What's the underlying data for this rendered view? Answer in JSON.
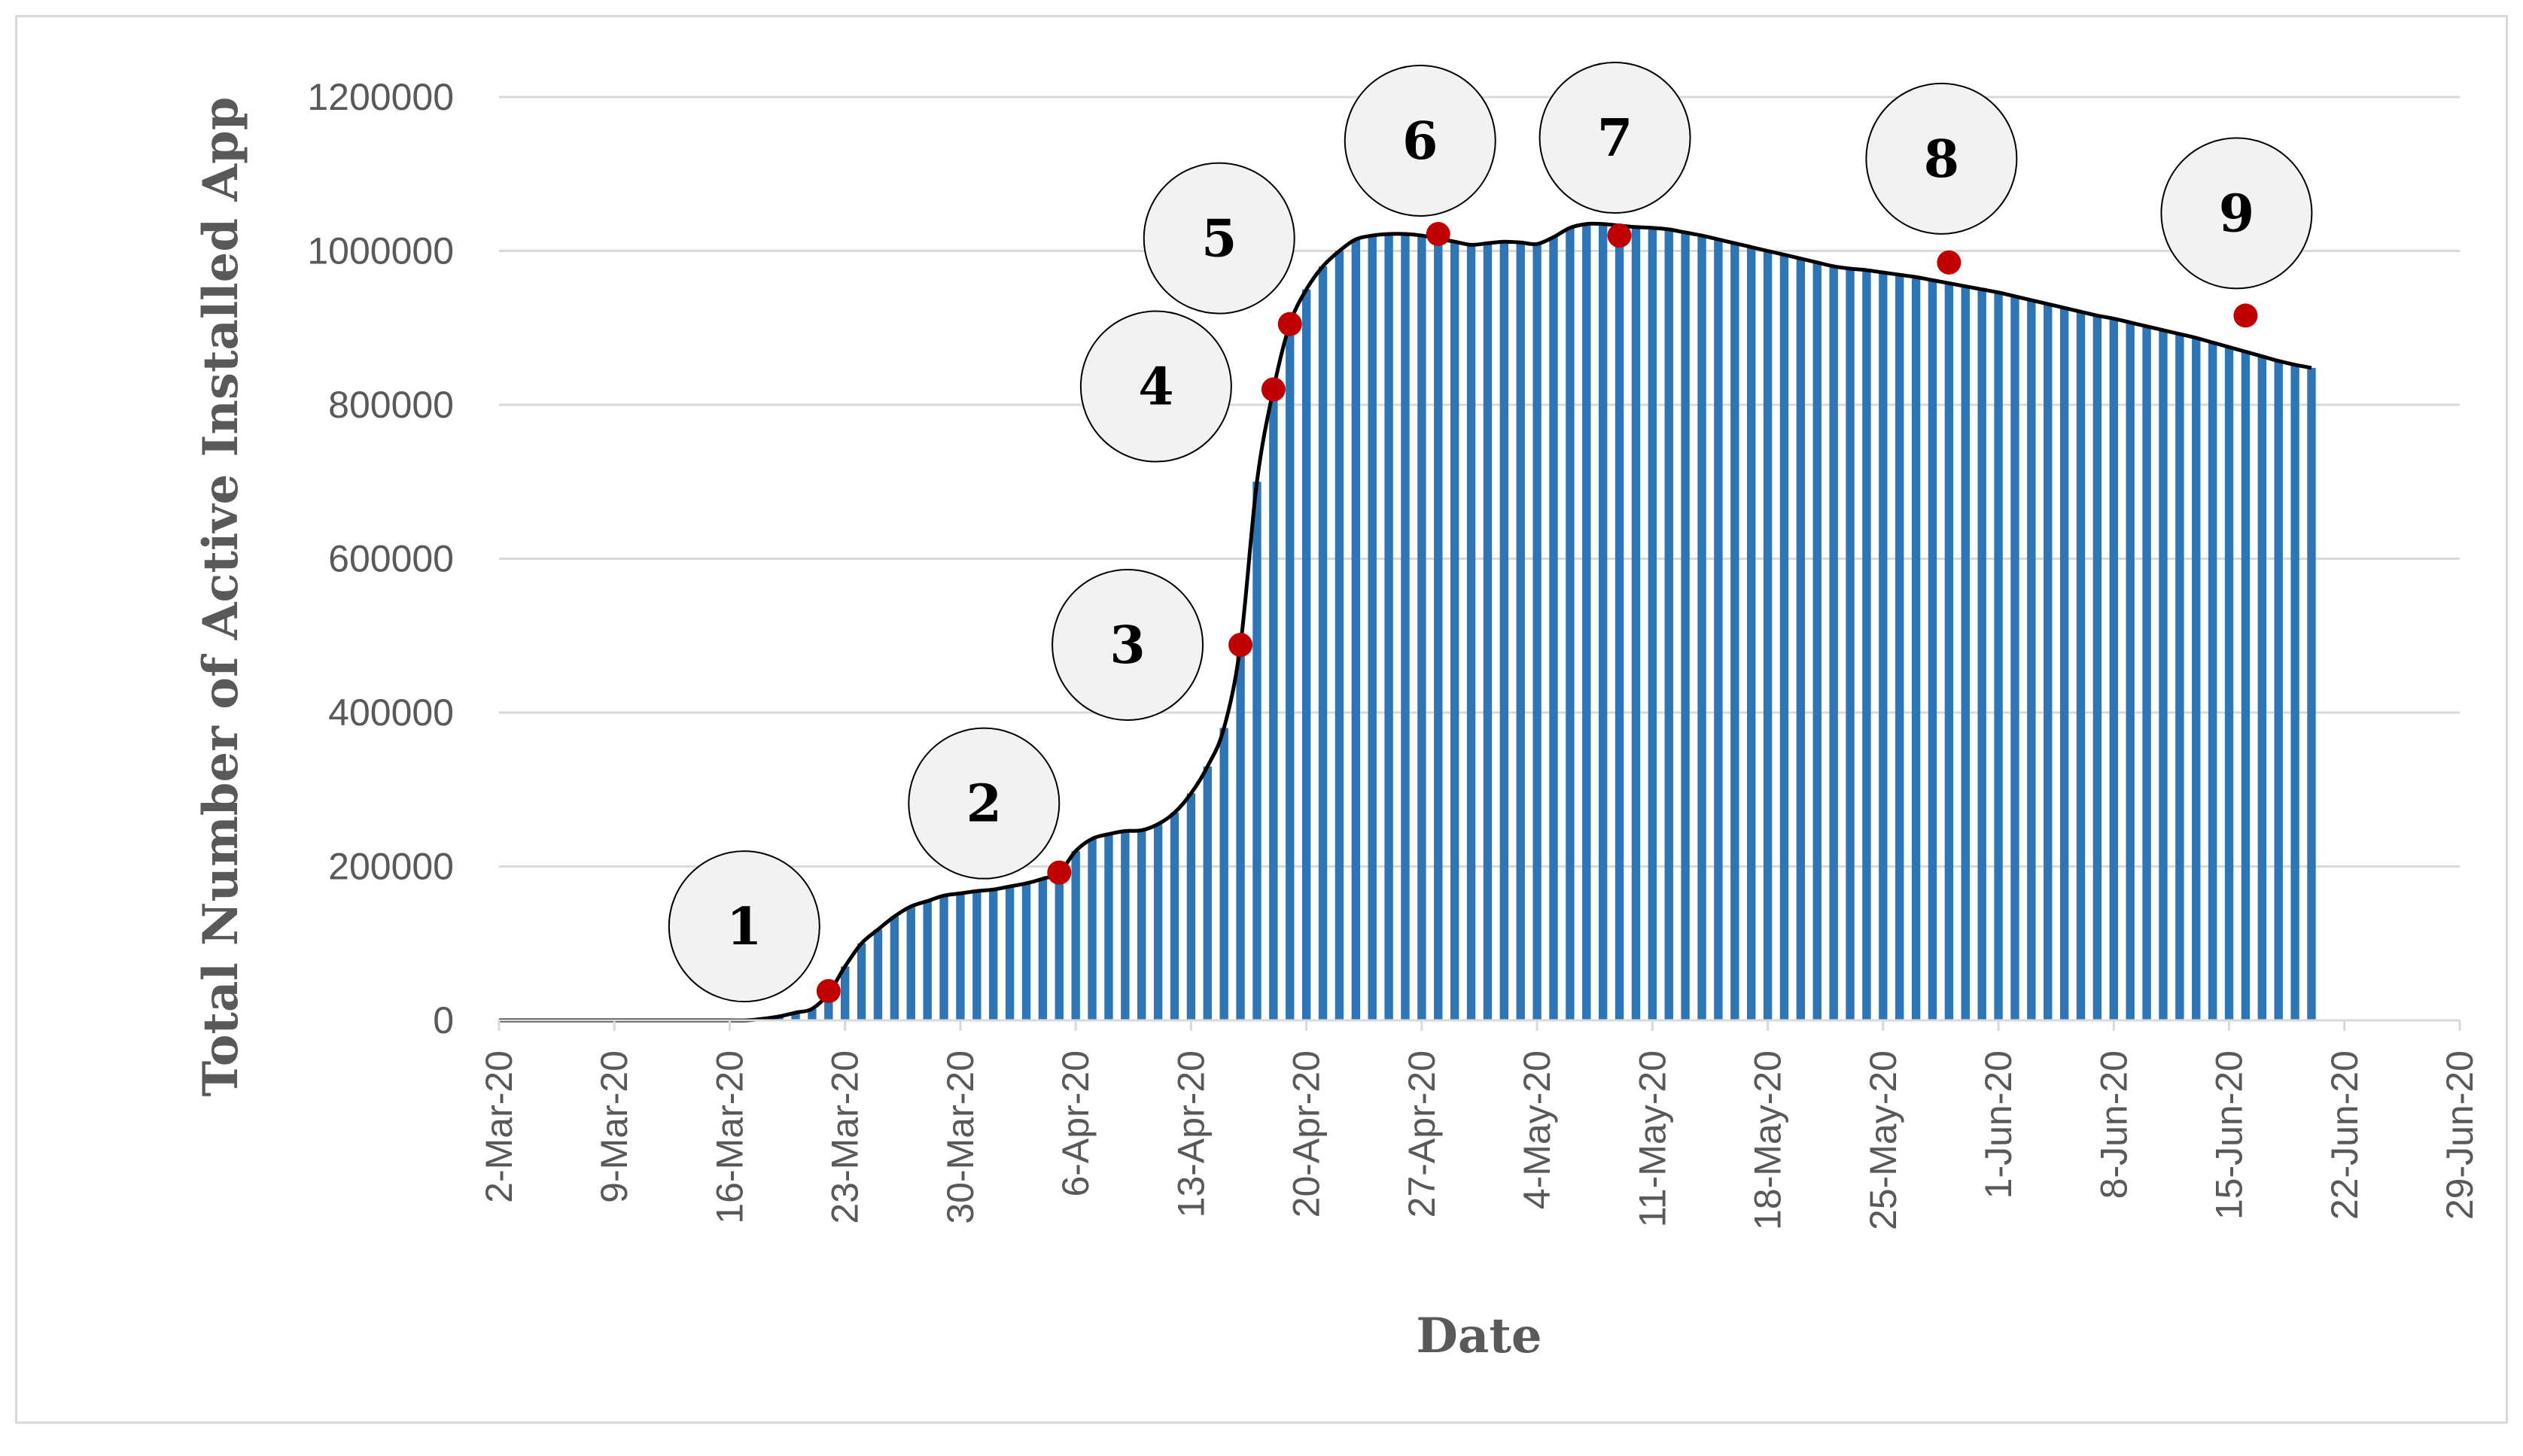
{
  "chart_data": {
    "type": "area",
    "title": "",
    "xlabel": "Date",
    "ylabel": "Total Number of Active Installed App",
    "ylim": [
      0,
      1200000
    ],
    "yticks": [
      "0",
      "200000",
      "400000",
      "600000",
      "800000",
      "1000000",
      "1200000"
    ],
    "xticks": [
      "2-Mar-20",
      "9-Mar-20",
      "16-Mar-20",
      "23-Mar-20",
      "30-Mar-20",
      "6-Apr-20",
      "13-Apr-20",
      "20-Apr-20",
      "27-Apr-20",
      "4-May-20",
      "11-May-20",
      "18-May-20",
      "25-May-20",
      "1-Jun-20",
      "8-Jun-20",
      "15-Jun-20",
      "22-Jun-20",
      "29-Jun-20"
    ],
    "grid": true,
    "x_start": "2020-03-02",
    "x_end": "2020-06-29",
    "series": [
      {
        "values": [
          0,
          0,
          0,
          0,
          0,
          0,
          0,
          0,
          0,
          0,
          0,
          0,
          0,
          0,
          0,
          0,
          2000,
          5000,
          10000,
          15000,
          35000,
          70000,
          100000,
          118000,
          135000,
          148000,
          155000,
          162000,
          165000,
          168000,
          170000,
          174000,
          178000,
          184000,
          192000,
          220000,
          236000,
          242000,
          246000,
          247000,
          255000,
          270000,
          295000,
          330000,
          380000,
          488000,
          700000,
          820000,
          905000,
          950000,
          980000,
          1000000,
          1015000,
          1020000,
          1022000,
          1022000,
          1020000,
          1016000,
          1012000,
          1008000,
          1010000,
          1012000,
          1011000,
          1009000,
          1018000,
          1030000,
          1035000,
          1035000,
          1033000,
          1031000,
          1030000,
          1028000,
          1024000,
          1020000,
          1015000,
          1010000,
          1005000,
          1000000,
          995000,
          990000,
          985000,
          980000,
          977000,
          975000,
          972000,
          969000,
          966000,
          962000,
          958000,
          954000,
          950000,
          946000,
          941000,
          936000,
          931000,
          926000,
          921000,
          916000,
          912000,
          907000,
          902000,
          897000,
          892000,
          887000,
          881000,
          875000,
          869000,
          863000,
          857000,
          852000,
          848000
        ]
      }
    ],
    "annotations": [
      {
        "label": "1",
        "date": "2020-03-22",
        "value": 38000
      },
      {
        "label": "2",
        "date": "2020-04-05",
        "value": 192000
      },
      {
        "label": "3",
        "date": "2020-04-16",
        "value": 488000
      },
      {
        "label": "4",
        "date": "2020-04-18",
        "value": 820000
      },
      {
        "label": "5",
        "date": "2020-04-19",
        "value": 905000
      },
      {
        "label": "6",
        "date": "2020-04-28",
        "value": 1022000
      },
      {
        "label": "7",
        "date": "2020-05-09",
        "value": 1020000
      },
      {
        "label": "8",
        "date": "2020-05-29",
        "value": 985000
      },
      {
        "label": "9",
        "date": "2020-06-16",
        "value": 916000
      }
    ],
    "colors": {
      "bars": "#2e75b6",
      "line": "#000000",
      "marker": "#c00000",
      "circle_fill": "#f2f2f2",
      "gridline": "#d9d9d9",
      "text": "#595959"
    }
  }
}
